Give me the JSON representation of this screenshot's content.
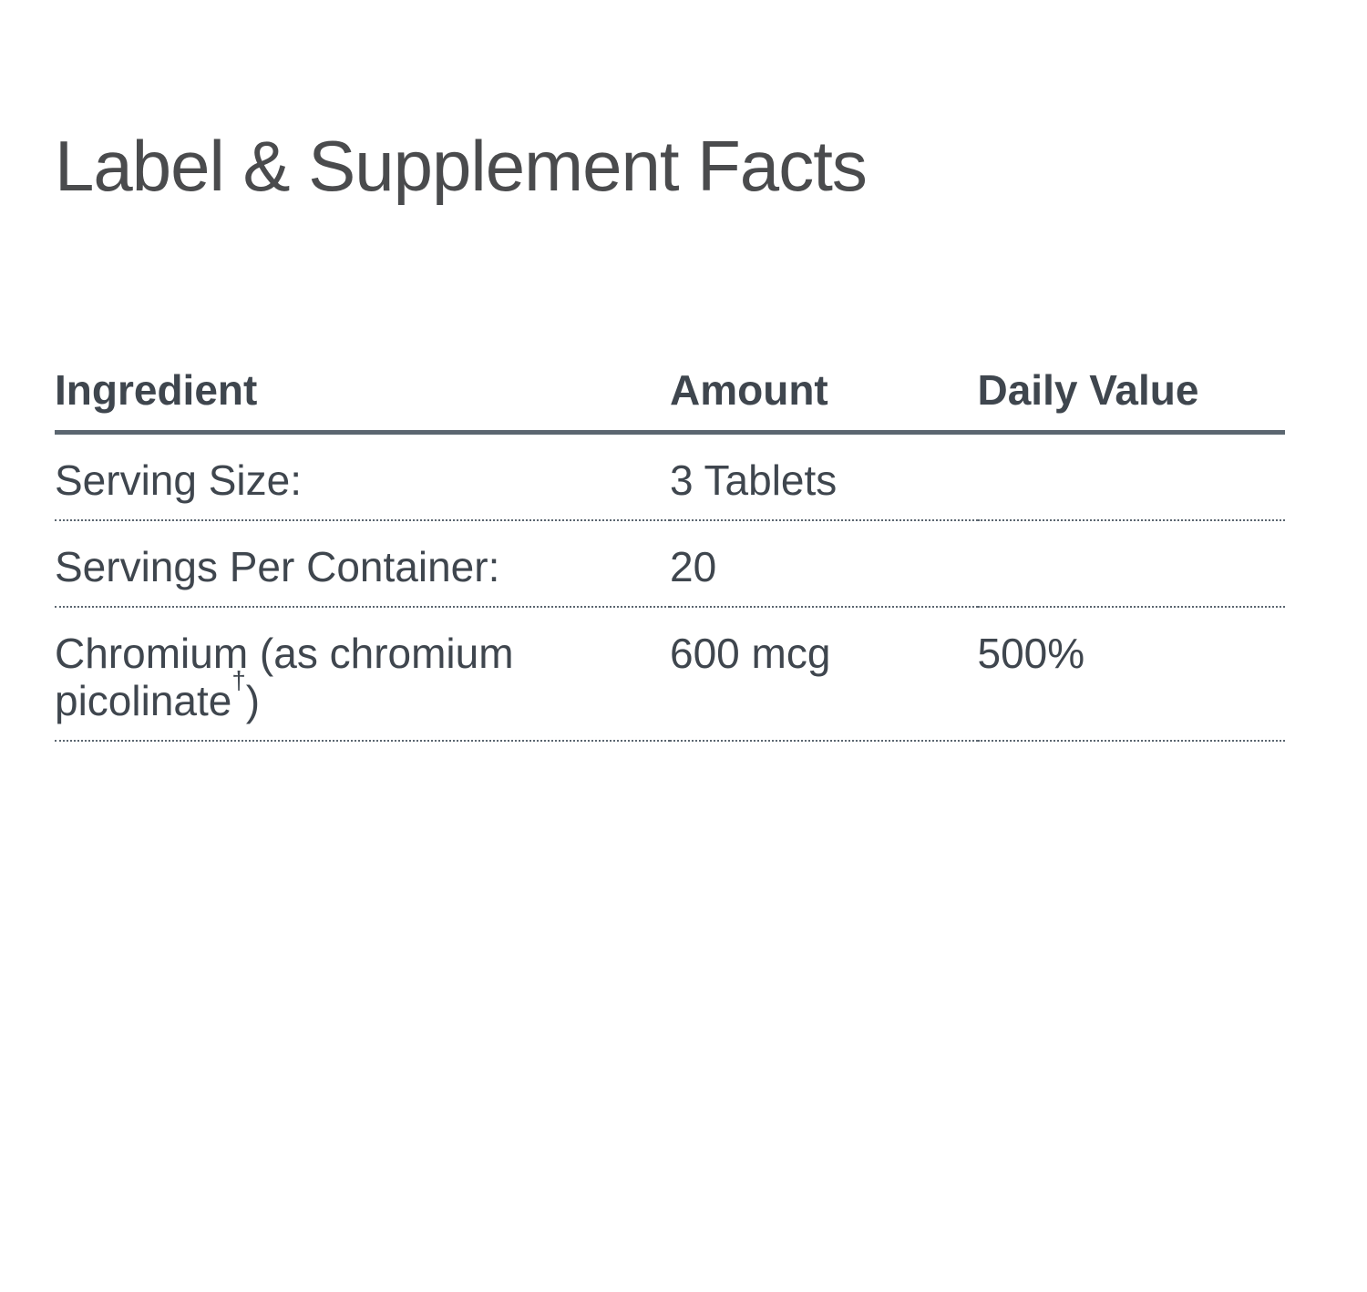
{
  "page": {
    "title": "Label & Supplement Facts"
  },
  "colors": {
    "rule": "#5b6670",
    "text": "#3f464e",
    "title": "#4a4b4d",
    "bg": "#ffffff"
  },
  "table": {
    "columns": [
      "Ingredient",
      "Amount",
      "Daily Value"
    ],
    "rows": [
      {
        "ingredient": "Serving Size:",
        "ingredient_sup": "",
        "ingredient_suffix": "",
        "amount": "3 Tablets",
        "daily_value": ""
      },
      {
        "ingredient": "Servings Per Container:",
        "ingredient_sup": "",
        "ingredient_suffix": "",
        "amount": "20",
        "daily_value": ""
      },
      {
        "ingredient": "Chromium (as chromium picolinate",
        "ingredient_sup": "†",
        "ingredient_suffix": ")",
        "amount": "600 mcg",
        "daily_value": "500%"
      }
    ]
  }
}
